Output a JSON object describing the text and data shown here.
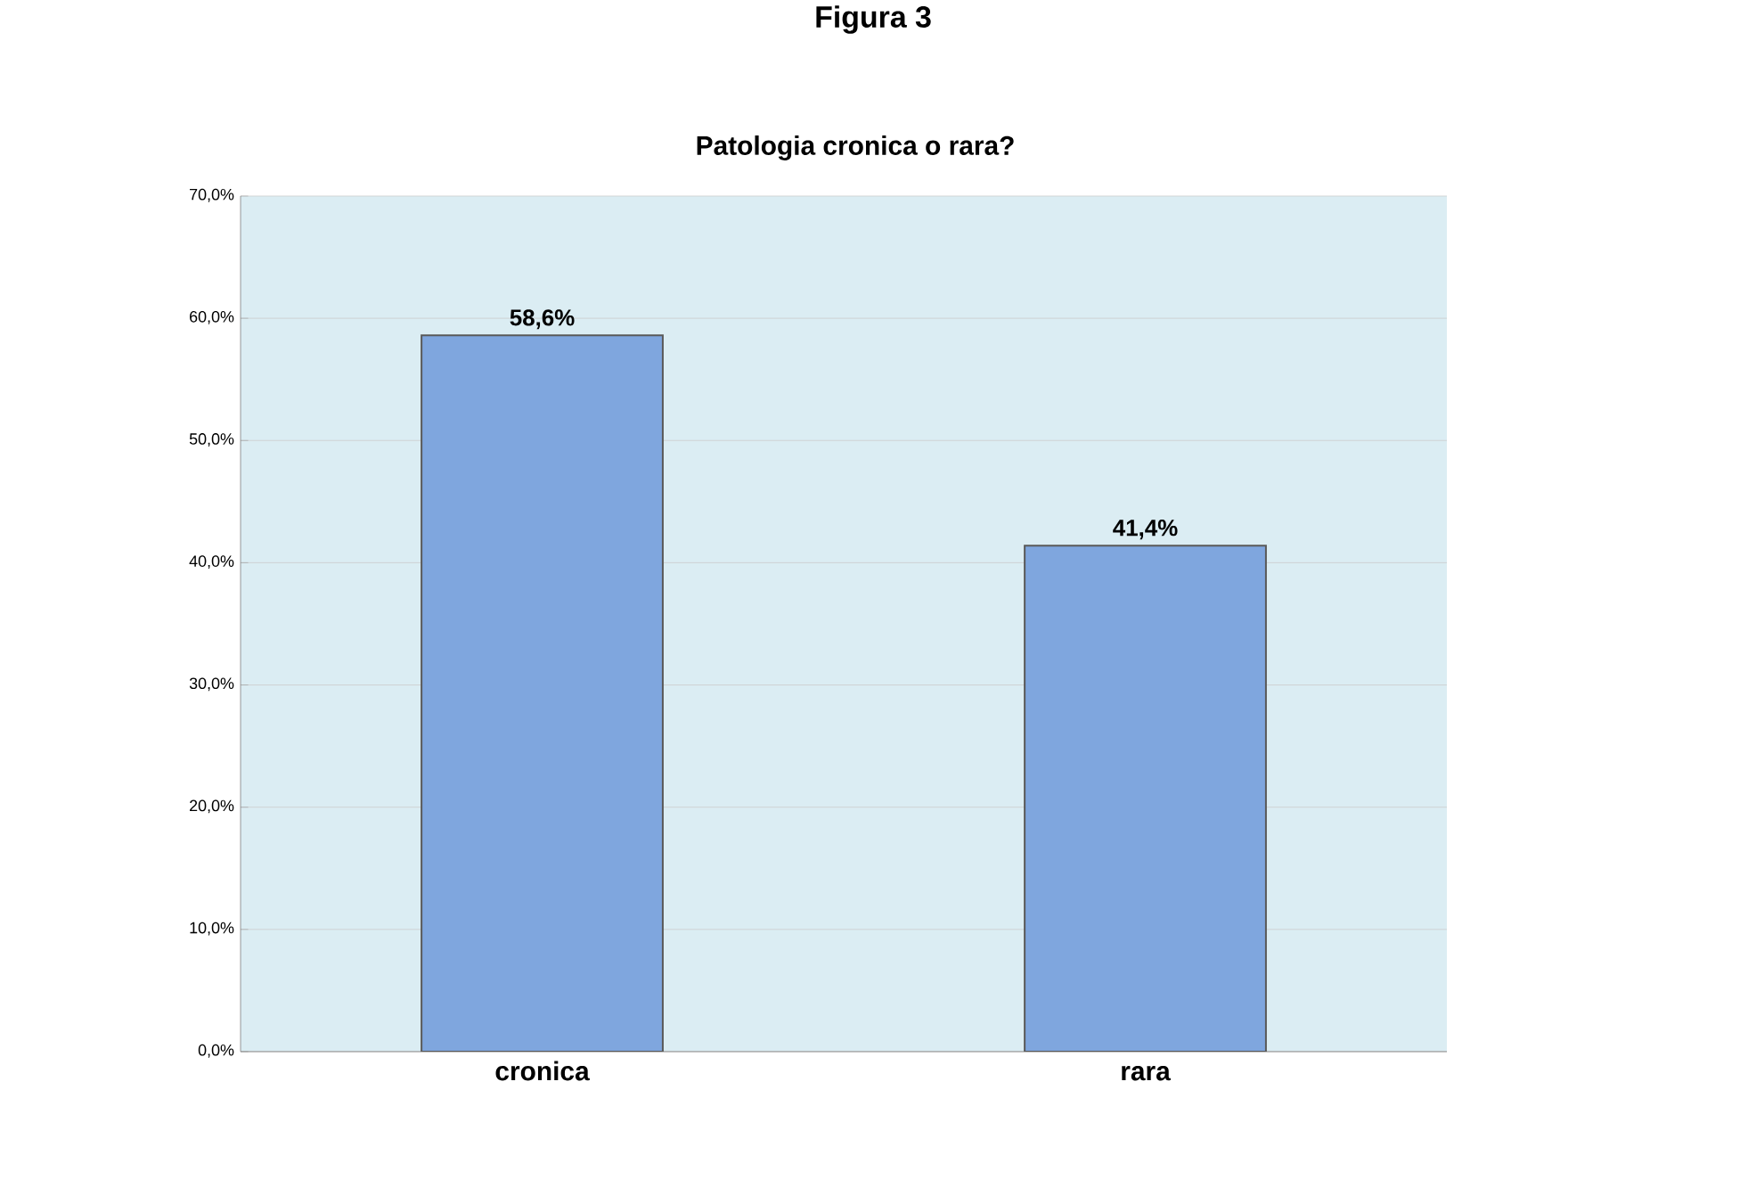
{
  "chart_data": {
    "type": "bar",
    "title": "Figura 3",
    "subtitle": "Patologia cronica o rara?",
    "categories": [
      "cronica",
      "rara"
    ],
    "values": [
      58.6,
      41.4
    ],
    "value_labels": [
      "58,6%",
      "41,4%"
    ],
    "color": "#7fa6de",
    "ylim": [
      0,
      70
    ],
    "yticks": [
      {
        "value": 0,
        "label": "0,0%"
      },
      {
        "value": 10,
        "label": "10,0%"
      },
      {
        "value": 20,
        "label": "20,0%"
      },
      {
        "value": 30,
        "label": "30,0%"
      },
      {
        "value": 40,
        "label": "40,0%"
      },
      {
        "value": 50,
        "label": "50,0%"
      },
      {
        "value": 60,
        "label": "60,0%"
      },
      {
        "value": 70,
        "label": "70,0%"
      }
    ],
    "grid": "y"
  }
}
